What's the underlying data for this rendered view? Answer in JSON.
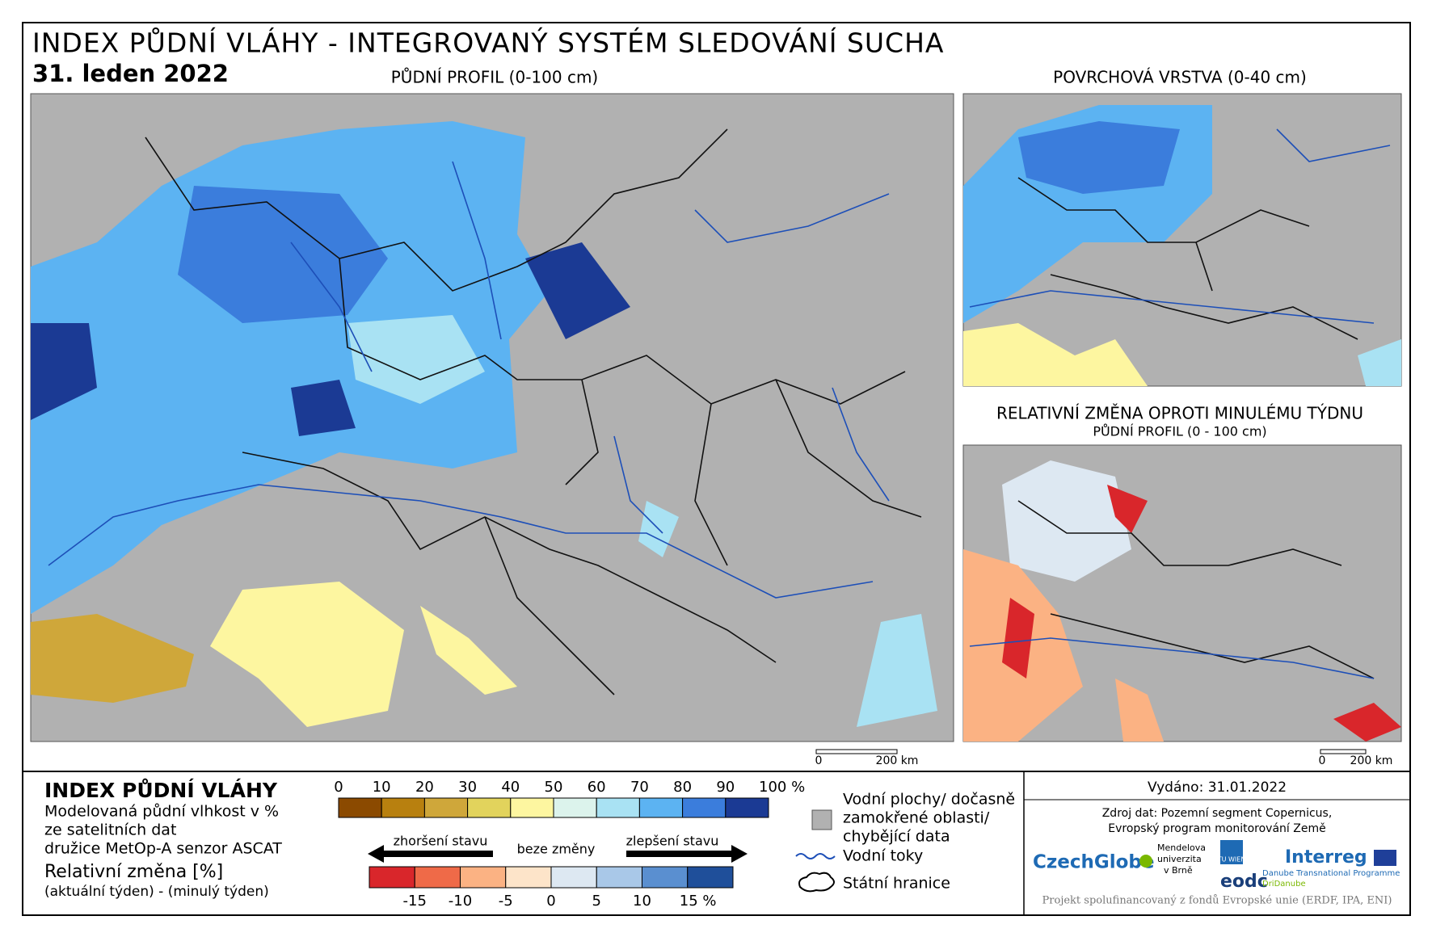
{
  "header": {
    "title": "INDEX PŮDNÍ VLÁHY - INTEGROVANÝ SYSTÉM SLEDOVÁNÍ SUCHA",
    "date": "31. leden 2022"
  },
  "maps": {
    "main_title": "PŮDNÍ PROFIL (0-100 cm)",
    "surface_title": "POVRCHOVÁ VRSTVA (0-40 cm)",
    "change_title": "RELATIVNÍ ZMĚNA OPROTI MINULÉMU TÝDNU",
    "change_subtitle": "PŮDNÍ PROFIL (0 - 100 cm)",
    "scale_main": [
      "0",
      "200 km"
    ],
    "scale_small": [
      "0",
      "200 km"
    ]
  },
  "legend": {
    "title": "INDEX PŮDNÍ VLÁHY",
    "description": [
      "Modelovaná půdní vlhkost v %",
      "ze satelitních dat",
      "družice MetOp-A senzor ASCAT"
    ],
    "change_title": "Relativní změna [%]",
    "change_note": "(aktuální týden) - (minulý týden)",
    "moisture_labels": [
      "0",
      "10",
      "20",
      "30",
      "40",
      "50",
      "60",
      "70",
      "80",
      "90",
      "100 %"
    ],
    "moisture_colors": [
      "#8b4a00",
      "#b8800f",
      "#cfa73a",
      "#e2d35c",
      "#fdf6a0",
      "#dcf3ec",
      "#a9e2f3",
      "#5cb3f2",
      "#3b7ddc",
      "#1b3a94"
    ],
    "worse": "zhoršení stavu",
    "nochange": "beze změny",
    "better": "zlepšení stavu",
    "change_labels": [
      "-15",
      "-10",
      "-5",
      "0",
      "5",
      "10",
      "15 %"
    ],
    "change_colors": [
      "#d9262b",
      "#ef6a48",
      "#fbb283",
      "#fde4c9",
      "#dde8f2",
      "#a9c8e8",
      "#5a8fd0",
      "#1f4f9a"
    ],
    "water_areas": [
      "Vodní plochy/ dočasně",
      "zamokřené oblasti/",
      "chybějící data"
    ],
    "rivers": "Vodní toky",
    "borders": "Státní hranice"
  },
  "footer": {
    "issued": "Vydáno: 31.01.2022",
    "source": [
      "Zdroj dat: Pozemní segment Copernicus,",
      "Evropský program monitorování Země"
    ],
    "logos": {
      "czechglobe": "CzechGlobe",
      "mendel": [
        "Mendelova",
        "univerzita",
        "v Brně"
      ],
      "tu": "TU WIEN",
      "eodc": "eodc",
      "interreg": "Interreg",
      "danube": "Danube Transnational Programme",
      "dridanube": "DriDanube"
    },
    "funding": "Projekt spolufinancovaný z fondů Evropské unie (ERDF, IPA, ENI)"
  }
}
